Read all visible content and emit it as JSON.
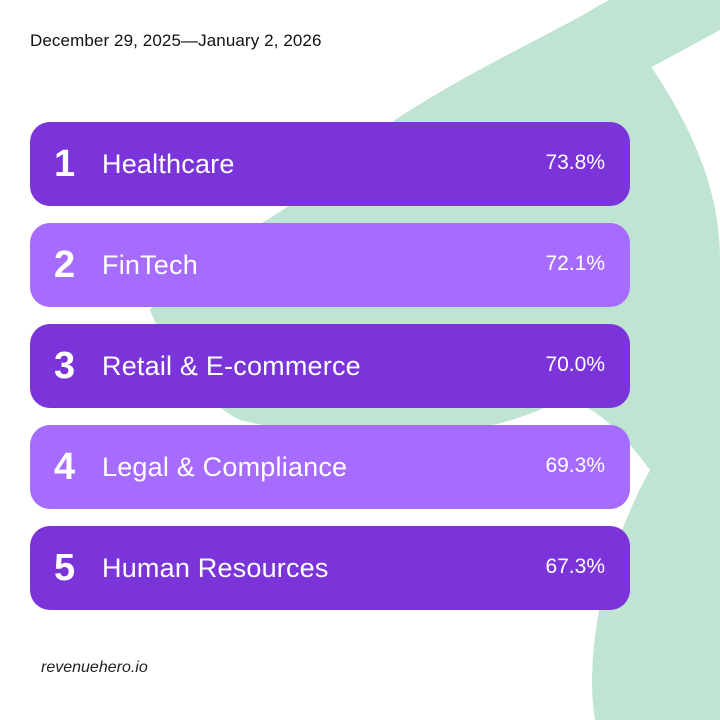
{
  "header": {
    "date_range": "December 29, 2025—January 2, 2026"
  },
  "ranking": [
    {
      "rank": "1",
      "label": "Healthcare",
      "value": "73.8%",
      "style": "dark"
    },
    {
      "rank": "2",
      "label": "FinTech",
      "value": "72.1%",
      "style": "light"
    },
    {
      "rank": "3",
      "label": "Retail & E-commerce",
      "value": "70.0%",
      "style": "dark"
    },
    {
      "rank": "4",
      "label": "Legal & Compliance",
      "value": "69.3%",
      "style": "light"
    },
    {
      "rank": "5",
      "label": "Human Resources",
      "value": "67.3%",
      "style": "dark"
    }
  ],
  "colors": {
    "dark_bar": "#7b34d9",
    "light_bar": "#a66cff",
    "background_shape": "#bfe4d2",
    "background": "#ffffff"
  },
  "footer": {
    "site": "revenuehero.io"
  }
}
